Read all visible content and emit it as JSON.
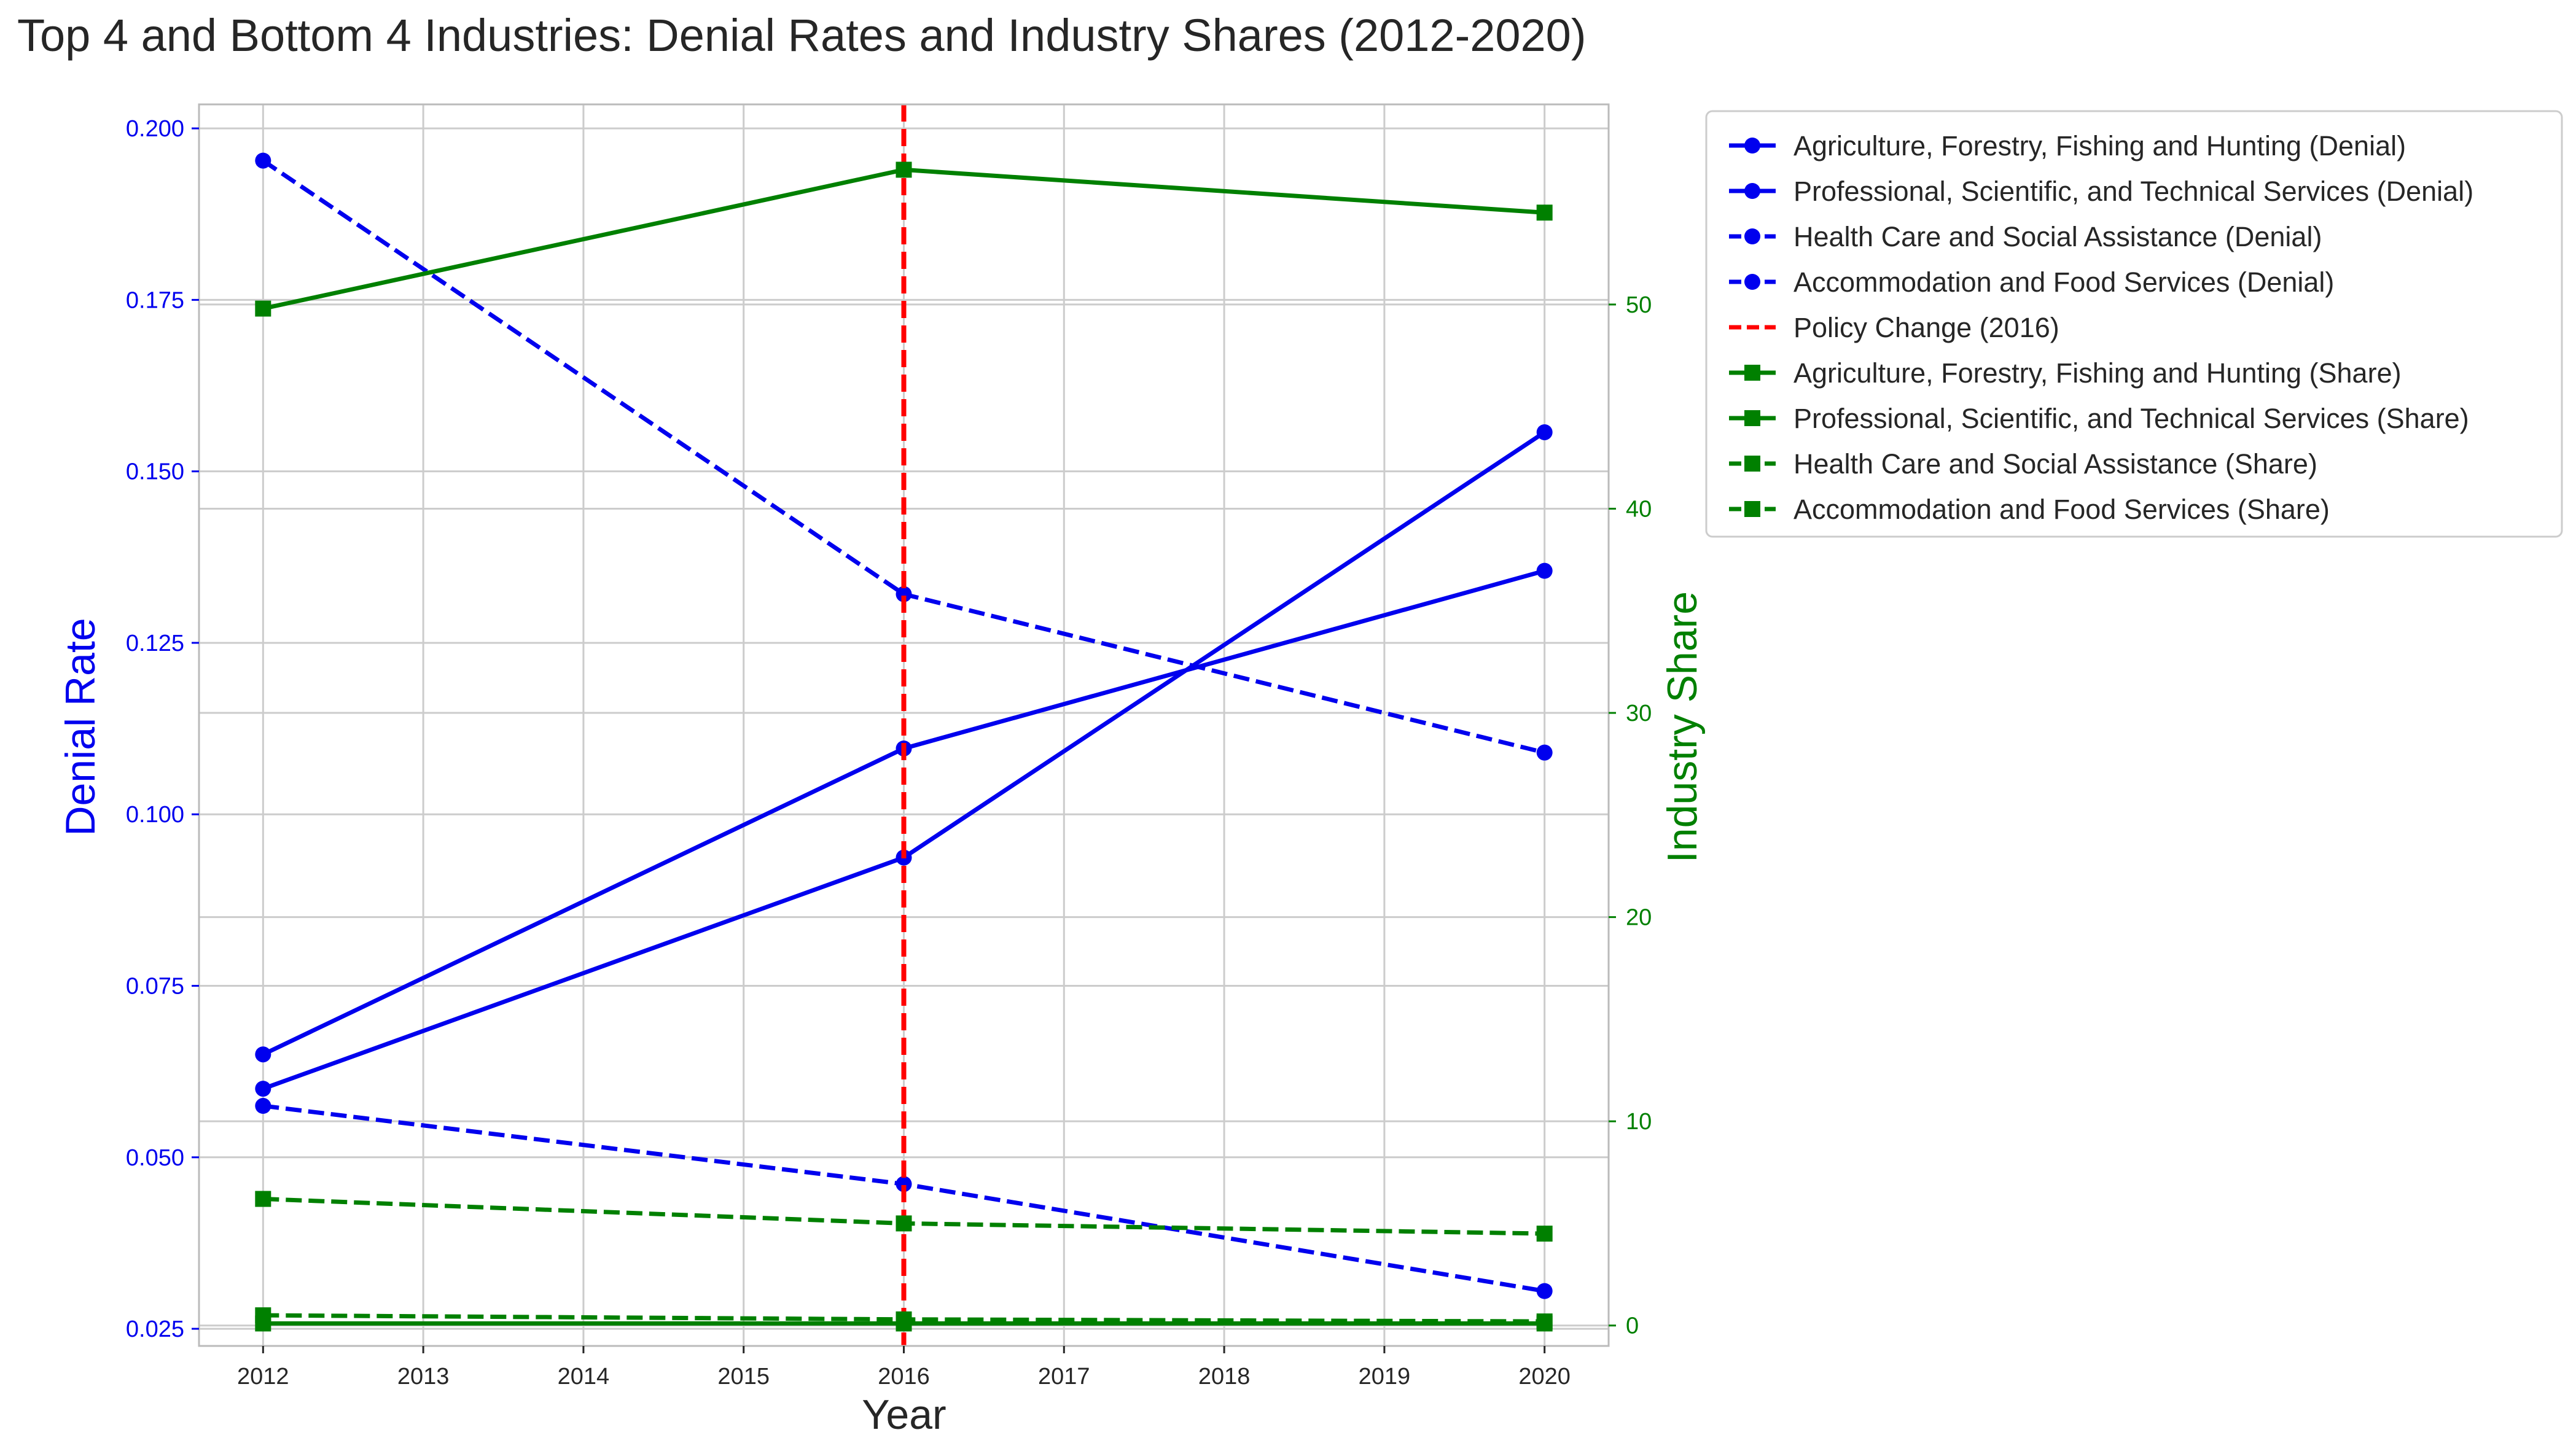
{
  "colors": {
    "denial": "#0000ee",
    "share": "#008000",
    "policy": "#ff0000",
    "grid": "#cccccc",
    "axes": "#bbbbbb",
    "text": "#262626"
  },
  "chart_data": {
    "type": "line",
    "title": "Top 4 and Bottom 4 Industries: Denial Rates and Industry Shares (2012-2020)",
    "xlabel": "Year",
    "ylabel_left": "Denial Rate",
    "ylabel_right": "Industry Share",
    "x_ticks": [
      "2012",
      "2013",
      "2014",
      "2015",
      "2016",
      "2017",
      "2018",
      "2019",
      "2020"
    ],
    "y_left_ticks": [
      "0.025",
      "0.050",
      "0.075",
      "0.100",
      "0.125",
      "0.150",
      "0.175",
      "0.200"
    ],
    "y_right_ticks": [
      "0",
      "10",
      "20",
      "30",
      "40",
      "50"
    ],
    "xlim": [
      2011.6,
      2020.4
    ],
    "ylim_left": [
      0.0225,
      0.2035
    ],
    "ylim_right": [
      -1.0,
      59.8
    ],
    "grid": true,
    "legend_position": "outside-right",
    "policy_change": {
      "x": 2016,
      "label": "Policy Change (2016)"
    },
    "denial_series": [
      {
        "name": "Agriculture, Forestry, Fishing and Hunting (Denial)",
        "dash": "solid",
        "x": [
          2012,
          2016,
          2020
        ],
        "y": [
          0.06,
          0.0937,
          0.1557
        ]
      },
      {
        "name": "Professional, Scientific, and Technical Services (Denial)",
        "dash": "solid",
        "x": [
          2012,
          2016,
          2020
        ],
        "y": [
          0.065,
          0.1096,
          0.1355
        ]
      },
      {
        "name": "Health Care and Social Assistance (Denial)",
        "dash": "dashed",
        "x": [
          2012,
          2016,
          2020
        ],
        "y": [
          0.1953,
          0.1321,
          0.109
        ]
      },
      {
        "name": "Accommodation and Food Services (Denial)",
        "dash": "dashed",
        "x": [
          2012,
          2016,
          2020
        ],
        "y": [
          0.0575,
          0.0461,
          0.0305
        ]
      }
    ],
    "share_series": [
      {
        "name": "Agriculture, Forestry, Fishing and Hunting (Share)",
        "dash": "solid",
        "x": [
          2012,
          2016,
          2020
        ],
        "y": [
          49.8,
          56.6,
          54.5
        ]
      },
      {
        "name": "Professional, Scientific, and Technical Services (Share)",
        "dash": "solid",
        "x": [
          2012,
          2016,
          2020
        ],
        "y": [
          0.1,
          0.1,
          0.1
        ]
      },
      {
        "name": "Health Care and Social Assistance (Share)",
        "dash": "dashed",
        "x": [
          2012,
          2016,
          2020
        ],
        "y": [
          6.2,
          5.0,
          4.5
        ]
      },
      {
        "name": "Accommodation and Food Services (Share)",
        "dash": "dashed",
        "x": [
          2012,
          2016,
          2020
        ],
        "y": [
          0.5,
          0.3,
          0.2
        ]
      }
    ]
  }
}
